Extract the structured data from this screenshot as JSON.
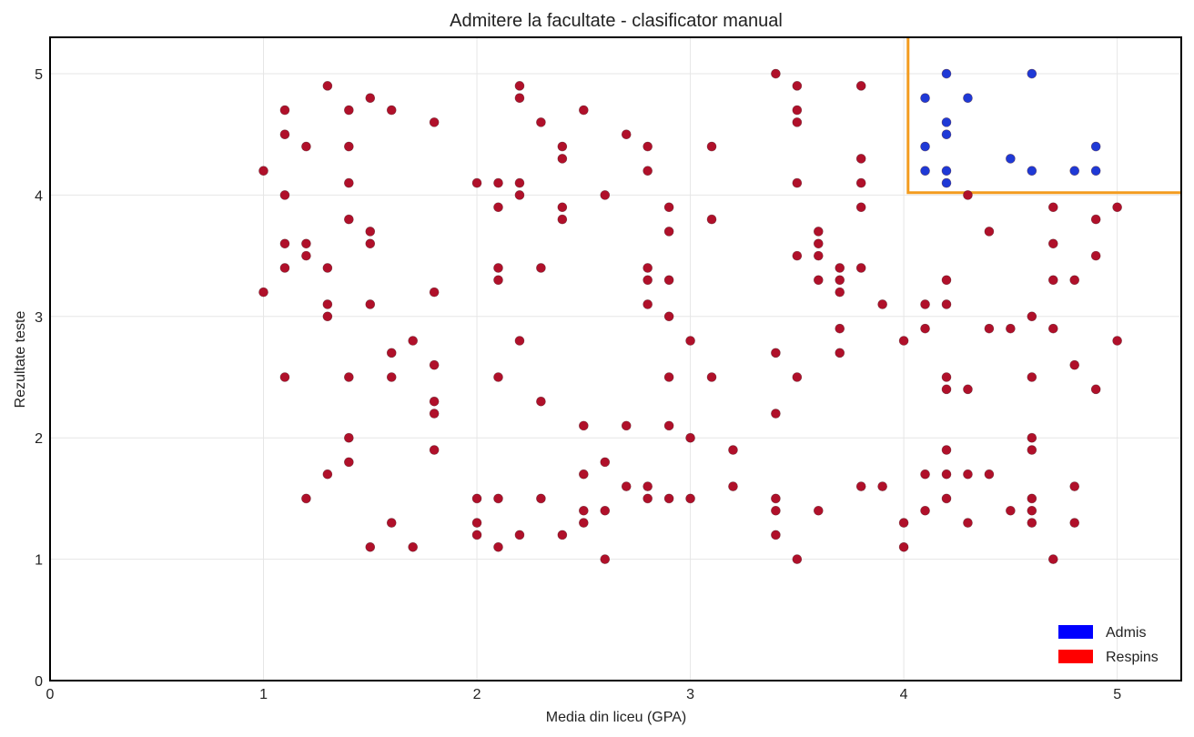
{
  "chart_data": {
    "type": "scatter",
    "title": "Admitere la facultate - clasificator manual",
    "xlabel": "Media din liceu (GPA)",
    "ylabel": "Rezultate teste",
    "xlim": [
      0,
      5.3
    ],
    "ylim": [
      0,
      5.3
    ],
    "x_ticks": [
      0,
      1,
      2,
      3,
      4,
      5
    ],
    "y_ticks": [
      0,
      1,
      2,
      3,
      4,
      5
    ],
    "grid": true,
    "legend_position": "bottom-right",
    "decision_boundary": {
      "x_threshold": 4.02,
      "y_threshold": 4.02,
      "color": "#f39c1f"
    },
    "series": [
      {
        "name": "Admis",
        "color": "#1f39d6",
        "legend_color": "#0000ff",
        "points": [
          [
            4.1,
            4.8
          ],
          [
            4.2,
            5.0
          ],
          [
            4.3,
            4.8
          ],
          [
            4.6,
            5.0
          ],
          [
            4.2,
            4.6
          ],
          [
            4.2,
            4.5
          ],
          [
            4.1,
            4.4
          ],
          [
            4.5,
            4.3
          ],
          [
            4.9,
            4.4
          ],
          [
            4.1,
            4.2
          ],
          [
            4.2,
            4.2
          ],
          [
            4.6,
            4.2
          ],
          [
            4.8,
            4.2
          ],
          [
            4.9,
            4.2
          ],
          [
            4.2,
            4.1
          ]
        ]
      },
      {
        "name": "Respins",
        "color": "#b0102a",
        "legend_color": "#ff0000",
        "points": [
          [
            1.0,
            4.2
          ],
          [
            1.0,
            3.2
          ],
          [
            1.1,
            4.7
          ],
          [
            1.1,
            4.5
          ],
          [
            1.1,
            4.0
          ],
          [
            1.1,
            3.6
          ],
          [
            1.1,
            3.4
          ],
          [
            1.1,
            2.5
          ],
          [
            1.2,
            4.4
          ],
          [
            1.2,
            3.6
          ],
          [
            1.2,
            3.5
          ],
          [
            1.2,
            1.5
          ],
          [
            1.3,
            4.9
          ],
          [
            1.3,
            3.4
          ],
          [
            1.3,
            3.1
          ],
          [
            1.3,
            3.0
          ],
          [
            1.3,
            1.7
          ],
          [
            1.4,
            4.7
          ],
          [
            1.4,
            4.4
          ],
          [
            1.4,
            4.1
          ],
          [
            1.4,
            3.8
          ],
          [
            1.4,
            2.5
          ],
          [
            1.4,
            2.0
          ],
          [
            1.4,
            1.8
          ],
          [
            1.5,
            4.8
          ],
          [
            1.5,
            3.7
          ],
          [
            1.5,
            3.6
          ],
          [
            1.5,
            3.1
          ],
          [
            1.5,
            1.1
          ],
          [
            1.6,
            4.7
          ],
          [
            1.6,
            2.7
          ],
          [
            1.6,
            2.5
          ],
          [
            1.6,
            1.3
          ],
          [
            1.7,
            2.8
          ],
          [
            1.7,
            1.1
          ],
          [
            1.8,
            4.6
          ],
          [
            1.8,
            3.2
          ],
          [
            1.8,
            2.6
          ],
          [
            1.8,
            2.3
          ],
          [
            1.8,
            2.2
          ],
          [
            1.8,
            1.9
          ],
          [
            2.0,
            4.1
          ],
          [
            2.0,
            1.5
          ],
          [
            2.0,
            1.3
          ],
          [
            2.0,
            1.2
          ],
          [
            2.1,
            4.1
          ],
          [
            2.1,
            3.9
          ],
          [
            2.1,
            3.4
          ],
          [
            2.1,
            3.3
          ],
          [
            2.1,
            2.5
          ],
          [
            2.1,
            1.5
          ],
          [
            2.1,
            1.1
          ],
          [
            2.2,
            4.9
          ],
          [
            2.2,
            4.8
          ],
          [
            2.2,
            4.1
          ],
          [
            2.2,
            4.0
          ],
          [
            2.2,
            2.8
          ],
          [
            2.2,
            1.2
          ],
          [
            2.3,
            4.6
          ],
          [
            2.3,
            3.4
          ],
          [
            2.3,
            2.3
          ],
          [
            2.3,
            1.5
          ],
          [
            2.4,
            4.4
          ],
          [
            2.4,
            4.3
          ],
          [
            2.4,
            3.9
          ],
          [
            2.4,
            3.8
          ],
          [
            2.4,
            1.2
          ],
          [
            2.5,
            4.7
          ],
          [
            2.5,
            2.1
          ],
          [
            2.5,
            1.7
          ],
          [
            2.5,
            1.4
          ],
          [
            2.5,
            1.3
          ],
          [
            2.6,
            4.0
          ],
          [
            2.6,
            1.8
          ],
          [
            2.6,
            1.4
          ],
          [
            2.6,
            1.0
          ],
          [
            2.7,
            4.5
          ],
          [
            2.7,
            2.1
          ],
          [
            2.7,
            1.6
          ],
          [
            2.8,
            4.4
          ],
          [
            2.8,
            4.2
          ],
          [
            2.8,
            3.4
          ],
          [
            2.8,
            3.3
          ],
          [
            2.8,
            3.1
          ],
          [
            2.8,
            1.6
          ],
          [
            2.8,
            1.5
          ],
          [
            2.9,
            3.9
          ],
          [
            2.9,
            3.7
          ],
          [
            2.9,
            3.3
          ],
          [
            2.9,
            3.0
          ],
          [
            2.9,
            2.5
          ],
          [
            2.9,
            2.1
          ],
          [
            2.9,
            1.5
          ],
          [
            3.0,
            2.8
          ],
          [
            3.0,
            2.0
          ],
          [
            3.0,
            1.5
          ],
          [
            3.1,
            4.4
          ],
          [
            3.1,
            3.8
          ],
          [
            3.1,
            2.5
          ],
          [
            3.2,
            1.9
          ],
          [
            3.2,
            1.6
          ],
          [
            3.4,
            5.0
          ],
          [
            3.4,
            2.7
          ],
          [
            3.4,
            2.2
          ],
          [
            3.4,
            1.5
          ],
          [
            3.4,
            1.4
          ],
          [
            3.4,
            1.2
          ],
          [
            3.5,
            4.9
          ],
          [
            3.5,
            4.7
          ],
          [
            3.5,
            4.6
          ],
          [
            3.5,
            4.1
          ],
          [
            3.5,
            3.5
          ],
          [
            3.5,
            2.5
          ],
          [
            3.5,
            1.0
          ],
          [
            3.6,
            3.7
          ],
          [
            3.6,
            3.6
          ],
          [
            3.6,
            3.5
          ],
          [
            3.6,
            3.3
          ],
          [
            3.6,
            1.4
          ],
          [
            3.7,
            3.4
          ],
          [
            3.7,
            3.3
          ],
          [
            3.7,
            3.2
          ],
          [
            3.7,
            2.9
          ],
          [
            3.7,
            2.7
          ],
          [
            3.8,
            4.9
          ],
          [
            3.8,
            4.3
          ],
          [
            3.8,
            4.1
          ],
          [
            3.8,
            3.9
          ],
          [
            3.8,
            3.4
          ],
          [
            3.8,
            1.6
          ],
          [
            3.9,
            3.1
          ],
          [
            3.9,
            1.6
          ],
          [
            4.0,
            2.8
          ],
          [
            4.0,
            1.3
          ],
          [
            4.0,
            1.1
          ],
          [
            4.1,
            3.1
          ],
          [
            4.1,
            2.9
          ],
          [
            4.1,
            1.7
          ],
          [
            4.1,
            1.4
          ],
          [
            4.2,
            3.3
          ],
          [
            4.2,
            3.1
          ],
          [
            4.2,
            2.5
          ],
          [
            4.2,
            2.4
          ],
          [
            4.2,
            1.9
          ],
          [
            4.2,
            1.7
          ],
          [
            4.2,
            1.5
          ],
          [
            4.3,
            4.0
          ],
          [
            4.3,
            2.4
          ],
          [
            4.3,
            1.7
          ],
          [
            4.3,
            1.3
          ],
          [
            4.4,
            3.7
          ],
          [
            4.4,
            2.9
          ],
          [
            4.4,
            1.7
          ],
          [
            4.5,
            2.9
          ],
          [
            4.5,
            1.4
          ],
          [
            4.6,
            3.0
          ],
          [
            4.6,
            2.5
          ],
          [
            4.6,
            2.0
          ],
          [
            4.6,
            1.9
          ],
          [
            4.6,
            1.5
          ],
          [
            4.6,
            1.4
          ],
          [
            4.6,
            1.3
          ],
          [
            4.7,
            3.9
          ],
          [
            4.7,
            3.6
          ],
          [
            4.7,
            3.3
          ],
          [
            4.7,
            2.9
          ],
          [
            4.7,
            1.0
          ],
          [
            4.8,
            3.3
          ],
          [
            4.8,
            2.6
          ],
          [
            4.8,
            1.6
          ],
          [
            4.8,
            1.3
          ],
          [
            4.9,
            3.8
          ],
          [
            4.9,
            3.5
          ],
          [
            4.9,
            2.4
          ],
          [
            5.0,
            3.9
          ],
          [
            5.0,
            2.8
          ]
        ]
      }
    ]
  }
}
